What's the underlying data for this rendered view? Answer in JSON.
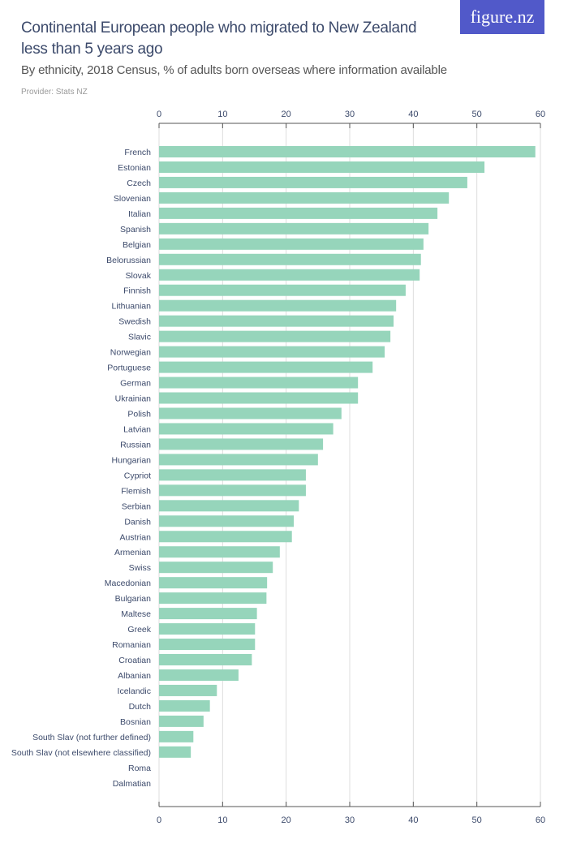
{
  "header": {
    "title": "Continental European people who migrated to New Zealand less than 5 years ago",
    "subtitle": "By ethnicity, 2018 Census, % of adults born overseas where information available",
    "provider": "Provider: Stats NZ",
    "logo": "figure.nz"
  },
  "colors": {
    "bar": "#96d5bb",
    "text": "#3c4a6b",
    "logo_bg": "#5159c9",
    "grid": "#dddddd"
  },
  "chart_data": {
    "type": "bar",
    "orientation": "horizontal",
    "title": "Continental European people who migrated to New Zealand less than 5 years ago",
    "subtitle": "By ethnicity, 2018 Census, % of adults born overseas where information available",
    "xlim": [
      0,
      60
    ],
    "ticks": [
      0,
      10,
      20,
      30,
      40,
      50,
      60
    ],
    "grid": true,
    "categories": [
      "French",
      "Estonian",
      "Czech",
      "Slovenian",
      "Italian",
      "Spanish",
      "Belgian",
      "Belorussian",
      "Slovak",
      "Finnish",
      "Lithuanian",
      "Swedish",
      "Slavic",
      "Norwegian",
      "Portuguese",
      "German",
      "Ukrainian",
      "Polish",
      "Latvian",
      "Russian",
      "Hungarian",
      "Cypriot",
      "Flemish",
      "Serbian",
      "Danish",
      "Austrian",
      "Armenian",
      "Swiss",
      "Macedonian",
      "Bulgarian",
      "Maltese",
      "Greek",
      "Romanian",
      "Croatian",
      "Albanian",
      "Icelandic",
      "Dutch",
      "Bosnian",
      "South Slav (not further defined)",
      "South Slav (not elsewhere classified)",
      "Roma",
      "Dalmatian"
    ],
    "values": [
      59.2,
      51.2,
      48.5,
      45.6,
      43.8,
      42.4,
      41.6,
      41.2,
      41.0,
      38.8,
      37.3,
      36.9,
      36.4,
      35.5,
      33.6,
      31.3,
      31.3,
      28.7,
      27.4,
      25.8,
      25.0,
      23.1,
      23.1,
      22.0,
      21.2,
      20.9,
      19.0,
      17.9,
      17.0,
      16.9,
      15.4,
      15.1,
      15.1,
      14.6,
      12.5,
      9.1,
      8.0,
      7.0,
      5.4,
      5.0,
      0,
      0
    ]
  }
}
